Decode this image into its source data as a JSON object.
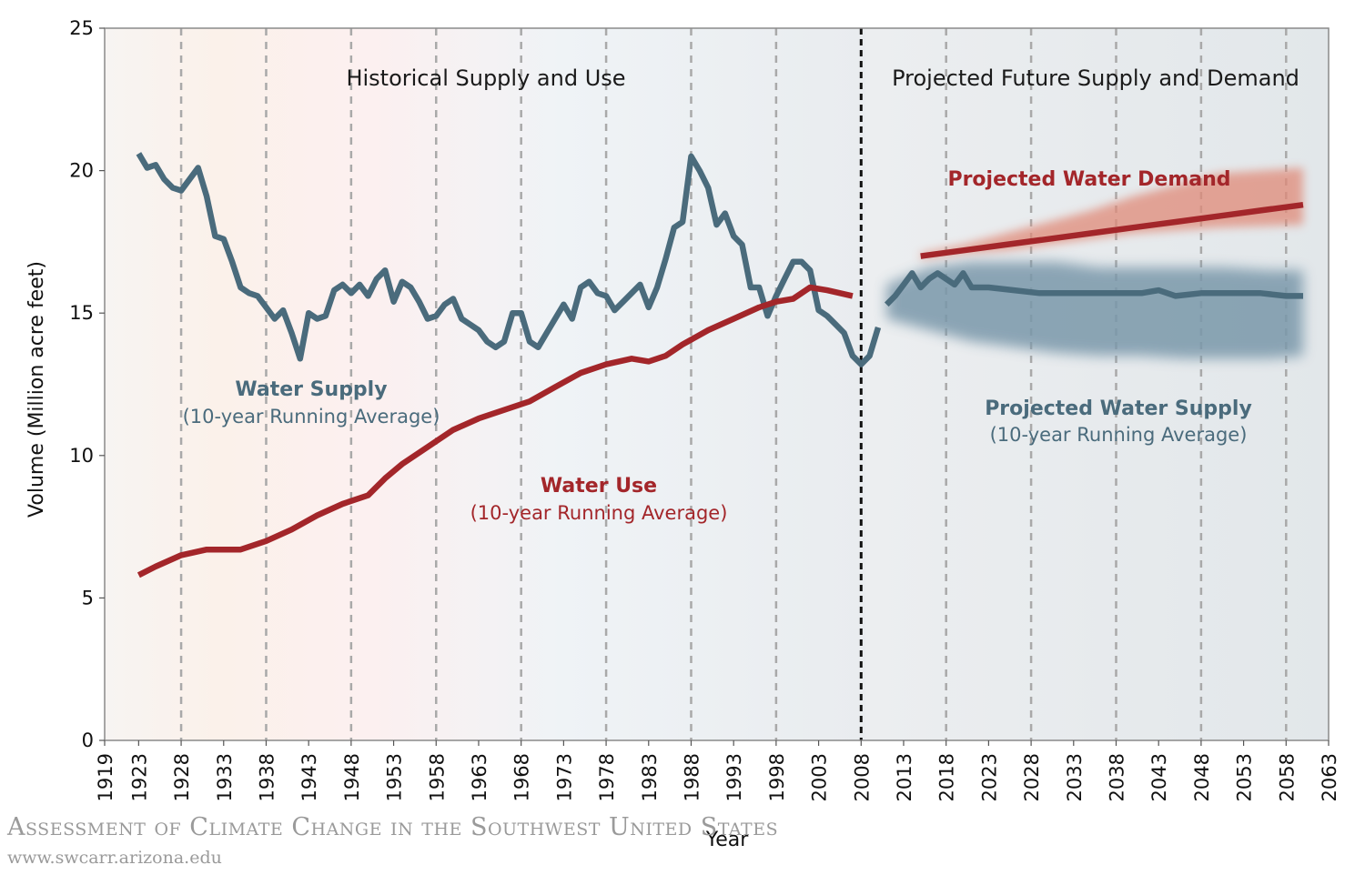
{
  "chart_data": {
    "type": "line",
    "xlabel": "Year",
    "ylabel": "Volume (Million acre feet)",
    "xlim": [
      1919,
      2063
    ],
    "ylim": [
      0,
      25
    ],
    "x_ticks": [
      1919,
      1923,
      1928,
      1933,
      1938,
      1943,
      1948,
      1953,
      1958,
      1963,
      1968,
      1973,
      1978,
      1983,
      1988,
      1993,
      1998,
      2003,
      2008,
      2013,
      2018,
      2023,
      2028,
      2033,
      2038,
      2043,
      2048,
      2053,
      2058,
      2063
    ],
    "y_ticks": [
      0,
      5,
      10,
      15,
      20,
      25
    ],
    "divider_year": 2008,
    "region_titles": {
      "historical": "Historical Supply and Use",
      "projected": "Projected Future Supply and Demand"
    },
    "colors": {
      "supply": "#4a6b7c",
      "use": "#a3262a",
      "supply_band": "#7a98aa",
      "demand_band": "#e08a78"
    },
    "series": [
      {
        "name": "Water Supply",
        "label": "Water Supply",
        "sublabel": "(10-year Running Average)",
        "x": [
          1923,
          1924,
          1925,
          1926,
          1927,
          1928,
          1929,
          1930,
          1931,
          1932,
          1933,
          1934,
          1935,
          1936,
          1937,
          1938,
          1939,
          1940,
          1941,
          1942,
          1943,
          1944,
          1945,
          1946,
          1947,
          1948,
          1949,
          1950,
          1951,
          1952,
          1953,
          1954,
          1955,
          1956,
          1957,
          1958,
          1959,
          1960,
          1961,
          1962,
          1963,
          1964,
          1965,
          1966,
          1967,
          1968,
          1969,
          1970,
          1971,
          1972,
          1973,
          1974,
          1975,
          1976,
          1977,
          1978,
          1979,
          1980,
          1981,
          1982,
          1983,
          1984,
          1985,
          1986,
          1987,
          1988,
          1989,
          1990,
          1991,
          1992,
          1993,
          1994,
          1995,
          1996,
          1997,
          1998,
          1999,
          2000,
          2001,
          2002,
          2003,
          2004,
          2005,
          2006,
          2007,
          2008,
          2009,
          2010
        ],
        "values": [
          20.6,
          20.1,
          20.2,
          19.7,
          19.4,
          19.3,
          19.7,
          20.1,
          19.1,
          17.7,
          17.6,
          16.8,
          15.9,
          15.7,
          15.6,
          15.2,
          14.8,
          15.1,
          14.3,
          13.4,
          15.0,
          14.8,
          14.9,
          15.8,
          16.0,
          15.7,
          16.0,
          15.6,
          16.2,
          16.5,
          15.4,
          16.1,
          15.9,
          15.4,
          14.8,
          14.9,
          15.3,
          15.5,
          14.8,
          14.6,
          14.4,
          14.0,
          13.8,
          14.0,
          15.0,
          15.0,
          14.0,
          13.8,
          14.3,
          14.8,
          15.3,
          14.8,
          15.9,
          16.1,
          15.7,
          15.6,
          15.1,
          15.4,
          15.7,
          16.0,
          15.2,
          15.9,
          16.9,
          18.0,
          18.2,
          20.5,
          20.0,
          19.4,
          18.1,
          18.5,
          17.7,
          17.4,
          15.9,
          15.9,
          14.9,
          15.6,
          16.2,
          16.8,
          16.8,
          16.5,
          15.1,
          14.9,
          14.6,
          14.3,
          13.5,
          13.2,
          13.5,
          14.5
        ]
      },
      {
        "name": "Water Use",
        "label": "Water Use",
        "sublabel": "(10-year Running Average)",
        "x": [
          1923,
          1925,
          1928,
          1931,
          1935,
          1938,
          1941,
          1944,
          1947,
          1950,
          1952,
          1954,
          1957,
          1960,
          1963,
          1966,
          1969,
          1972,
          1975,
          1978,
          1981,
          1983,
          1985,
          1987,
          1990,
          1993,
          1996,
          1998,
          2000,
          2002,
          2004,
          2007
        ],
        "values": [
          5.8,
          6.1,
          6.5,
          6.7,
          6.7,
          7.0,
          7.4,
          7.9,
          8.3,
          8.6,
          9.2,
          9.7,
          10.3,
          10.9,
          11.3,
          11.6,
          11.9,
          12.4,
          12.9,
          13.2,
          13.4,
          13.3,
          13.5,
          13.9,
          14.4,
          14.8,
          15.2,
          15.4,
          15.5,
          15.9,
          15.8,
          15.6
        ]
      },
      {
        "name": "Projected Water Supply",
        "label": "Projected Water Supply",
        "sublabel": "(10-year Running Average)",
        "x": [
          2011,
          2012,
          2013,
          2014,
          2015,
          2016,
          2017,
          2018,
          2019,
          2020,
          2021,
          2023,
          2026,
          2029,
          2032,
          2035,
          2038,
          2041,
          2043,
          2045,
          2048,
          2050,
          2052,
          2055,
          2058,
          2060
        ],
        "values": [
          15.3,
          15.6,
          16.0,
          16.4,
          15.9,
          16.2,
          16.4,
          16.2,
          16.0,
          16.4,
          15.9,
          15.9,
          15.8,
          15.7,
          15.7,
          15.7,
          15.7,
          15.7,
          15.8,
          15.6,
          15.7,
          15.7,
          15.7,
          15.7,
          15.6,
          15.6
        ],
        "band_upper": [
          16.0,
          16.6,
          16.8,
          16.8,
          16.8,
          16.6,
          16.6,
          16.6,
          16.6,
          16.5,
          16.5
        ],
        "band_lower": [
          14.8,
          14.4,
          14.0,
          13.8,
          13.6,
          13.5,
          13.5,
          13.4,
          13.4,
          13.4,
          13.5
        ],
        "band_x": [
          2011,
          2016,
          2021,
          2026,
          2031,
          2036,
          2041,
          2046,
          2051,
          2056,
          2060
        ]
      },
      {
        "name": "Projected Water Demand",
        "label": "Projected Water Demand",
        "x": [
          2015,
          2020,
          2025,
          2030,
          2035,
          2040,
          2045,
          2050,
          2055,
          2060
        ],
        "values": [
          17.0,
          17.2,
          17.4,
          17.6,
          17.8,
          18.0,
          18.2,
          18.4,
          18.6,
          18.8
        ],
        "band_upper": [
          17.1,
          17.4,
          17.8,
          18.2,
          18.6,
          19.1,
          19.5,
          19.9,
          20.1
        ],
        "band_lower": [
          16.9,
          17.1,
          17.2,
          17.4,
          17.6,
          17.8,
          17.9,
          18.0,
          18.1
        ],
        "band_x": [
          2015,
          2020,
          2025,
          2030,
          2035,
          2040,
          2045,
          2050,
          2060
        ]
      }
    ]
  },
  "credit": {
    "title": "Assessment of Climate Change in the Southwest United States",
    "url": "www.swcarr.arizona.edu"
  }
}
